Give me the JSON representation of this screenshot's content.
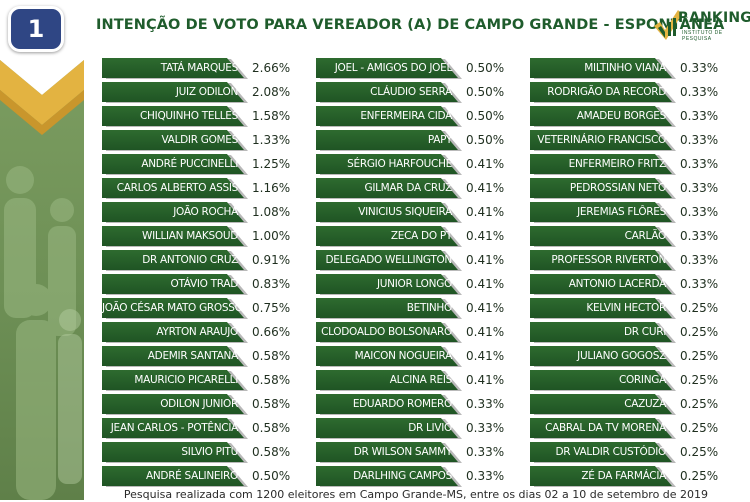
{
  "badge": {
    "number": "1"
  },
  "header": {
    "title": "INTENÇÃO DE VOTO PARA VEREADOR (A) DE CAMPO GRANDE - ESPONTÂNEA"
  },
  "brand": {
    "name": "RANKING",
    "subtitle": "INSTITUTO DE PESQUISA",
    "icon": "check-mark-icon"
  },
  "footer": {
    "text": "Pesquisa realizada com 1200 eleitores em Campo Grande-MS, entre os dias 02 a 10 de setembro de 2019"
  },
  "colors": {
    "bar": "#245f29",
    "title": "#1f5c2c",
    "panel": "#6d8f55",
    "badge": "#2f4684"
  },
  "chart_data": {
    "type": "bar",
    "title": "INTENÇÃO DE VOTO PARA VEREADOR (A) DE CAMPO GRANDE - ESPONTÂNEA",
    "unit": "%",
    "columns": [
      [
        {
          "name": "TATÁ MARQUES",
          "value": 2.66,
          "label": "2.66%"
        },
        {
          "name": "JUIZ ODILON",
          "value": 2.08,
          "label": "2.08%"
        },
        {
          "name": "CHIQUINHO TELLES",
          "value": 1.58,
          "label": "1.58%"
        },
        {
          "name": "VALDIR GOMES",
          "value": 1.33,
          "label": "1.33%"
        },
        {
          "name": "ANDRÉ PUCCINELLI",
          "value": 1.25,
          "label": "1.25%"
        },
        {
          "name": "CARLOS ALBERTO ASSIS",
          "value": 1.16,
          "label": "1.16%"
        },
        {
          "name": "JOÃO ROCHA",
          "value": 1.08,
          "label": "1.08%"
        },
        {
          "name": "WILLIAN MAKSOUD",
          "value": 1.0,
          "label": "1.00%"
        },
        {
          "name": "DR ANTONIO CRUZ",
          "value": 0.91,
          "label": "0.91%"
        },
        {
          "name": "OTÁVIO TRAD",
          "value": 0.83,
          "label": "0.83%"
        },
        {
          "name": "JOÃO CÉSAR MATO GROSSO",
          "value": 0.75,
          "label": "0.75%"
        },
        {
          "name": "AYRTON ARAUJO",
          "value": 0.66,
          "label": "0.66%"
        },
        {
          "name": "ADEMIR SANTANA",
          "value": 0.58,
          "label": "0.58%"
        },
        {
          "name": "MAURICIO PICARELLI",
          "value": 0.58,
          "label": "0.58%"
        },
        {
          "name": "ODILON JUNIOR",
          "value": 0.58,
          "label": "0.58%"
        },
        {
          "name": "JEAN CARLOS - POTÊNCIA",
          "value": 0.58,
          "label": "0.58%"
        },
        {
          "name": "SILVIO PITU",
          "value": 0.58,
          "label": "0.58%"
        },
        {
          "name": "ANDRÉ SALINEIRO",
          "value": 0.5,
          "label": "0.50%"
        }
      ],
      [
        {
          "name": "JOEL - AMIGOS DO JOEL",
          "value": 0.5,
          "label": "0.50%"
        },
        {
          "name": "CLÁUDIO SERRA",
          "value": 0.5,
          "label": "0.50%"
        },
        {
          "name": "ENFERMEIRA CIDA",
          "value": 0.5,
          "label": "0.50%"
        },
        {
          "name": "PAPY",
          "value": 0.5,
          "label": "0.50%"
        },
        {
          "name": "SÉRGIO HARFOUCHE",
          "value": 0.41,
          "label": "0.41%"
        },
        {
          "name": "GILMAR DA CRUZ",
          "value": 0.41,
          "label": "0.41%"
        },
        {
          "name": "VINICIUS SIQUEIRA",
          "value": 0.41,
          "label": "0.41%"
        },
        {
          "name": "ZECA DO PT",
          "value": 0.41,
          "label": "0.41%"
        },
        {
          "name": "DELEGADO WELLINGTON",
          "value": 0.41,
          "label": "0.41%"
        },
        {
          "name": "JUNIOR LONGO",
          "value": 0.41,
          "label": "0.41%"
        },
        {
          "name": "BETINHO",
          "value": 0.41,
          "label": "0.41%"
        },
        {
          "name": "CLODOALDO BOLSONARO",
          "value": 0.41,
          "label": "0.41%"
        },
        {
          "name": "MAICON NOGUEIRA",
          "value": 0.41,
          "label": "0.41%"
        },
        {
          "name": "ALCINA REIS",
          "value": 0.41,
          "label": "0.41%"
        },
        {
          "name": "EDUARDO ROMERO",
          "value": 0.33,
          "label": "0.33%"
        },
        {
          "name": "DR LIVIO",
          "value": 0.33,
          "label": "0.33%"
        },
        {
          "name": "DR WILSON SAMMY",
          "value": 0.33,
          "label": "0.33%"
        },
        {
          "name": "DARLHING CAMPOS",
          "value": 0.33,
          "label": "0.33%"
        }
      ],
      [
        {
          "name": "MILTINHO VIANA",
          "value": 0.33,
          "label": "0.33%"
        },
        {
          "name": "RODRIGÃO DA RECORD",
          "value": 0.33,
          "label": "0.33%"
        },
        {
          "name": "AMADEU BORGES",
          "value": 0.33,
          "label": "0.33%"
        },
        {
          "name": "VETERINÁRIO FRANCISCO",
          "value": 0.33,
          "label": "0.33%"
        },
        {
          "name": "ENFERMEIRO FRITZ",
          "value": 0.33,
          "label": "0.33%"
        },
        {
          "name": "PEDROSSIAN NETO",
          "value": 0.33,
          "label": "0.33%"
        },
        {
          "name": "JEREMIAS FLÔRES",
          "value": 0.33,
          "label": "0.33%"
        },
        {
          "name": "CARLÃO",
          "value": 0.33,
          "label": "0.33%"
        },
        {
          "name": "PROFESSOR RIVERTON",
          "value": 0.33,
          "label": "0.33%"
        },
        {
          "name": "ANTONIO LACERDA",
          "value": 0.33,
          "label": "0.33%"
        },
        {
          "name": "KELVIN HECTOR",
          "value": 0.25,
          "label": "0.25%"
        },
        {
          "name": "DR CURI",
          "value": 0.25,
          "label": "0.25%"
        },
        {
          "name": "JULIANO GOGOSZ",
          "value": 0.25,
          "label": "0.25%"
        },
        {
          "name": "CORINGA",
          "value": 0.25,
          "label": "0.25%"
        },
        {
          "name": "CAZUZA",
          "value": 0.25,
          "label": "0.25%"
        },
        {
          "name": "CABRAL DA TV MORENA",
          "value": 0.25,
          "label": "0.25%"
        },
        {
          "name": "DR VALDIR CUSTÓDIO",
          "value": 0.25,
          "label": "0.25%"
        },
        {
          "name": "ZÉ DA FARMÁCIA",
          "value": 0.25,
          "label": "0.25%"
        }
      ]
    ]
  }
}
